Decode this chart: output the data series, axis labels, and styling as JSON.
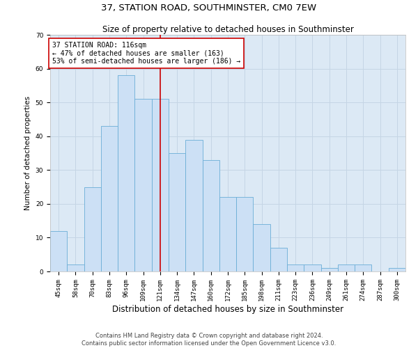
{
  "title": "37, STATION ROAD, SOUTHMINSTER, CM0 7EW",
  "subtitle": "Size of property relative to detached houses in Southminster",
  "xlabel": "Distribution of detached houses by size in Southminster",
  "ylabel": "Number of detached properties",
  "categories": [
    "45sqm",
    "58sqm",
    "70sqm",
    "83sqm",
    "96sqm",
    "109sqm",
    "121sqm",
    "134sqm",
    "147sqm",
    "160sqm",
    "172sqm",
    "185sqm",
    "198sqm",
    "211sqm",
    "223sqm",
    "236sqm",
    "249sqm",
    "261sqm",
    "274sqm",
    "287sqm",
    "300sqm"
  ],
  "values": [
    12,
    2,
    25,
    43,
    58,
    51,
    51,
    35,
    39,
    33,
    22,
    22,
    14,
    7,
    2,
    2,
    1,
    2,
    2,
    0,
    1
  ],
  "bar_color": "#cce0f5",
  "bar_edge_color": "#6aaed6",
  "vline_x_index": 6,
  "vline_color": "#cc0000",
  "annotation_text": "37 STATION ROAD: 116sqm\n← 47% of detached houses are smaller (163)\n53% of semi-detached houses are larger (186) →",
  "annotation_box_color": "#ffffff",
  "annotation_box_edge": "#cc0000",
  "ylim": [
    0,
    70
  ],
  "yticks": [
    0,
    10,
    20,
    30,
    40,
    50,
    60,
    70
  ],
  "grid_color": "#c5d5e5",
  "background_color": "#dce9f5",
  "footer_text": "Contains HM Land Registry data © Crown copyright and database right 2024.\nContains public sector information licensed under the Open Government Licence v3.0.",
  "title_fontsize": 9.5,
  "subtitle_fontsize": 8.5,
  "xlabel_fontsize": 8.5,
  "ylabel_fontsize": 7.5,
  "tick_fontsize": 6.5,
  "annotation_fontsize": 7,
  "footer_fontsize": 6
}
